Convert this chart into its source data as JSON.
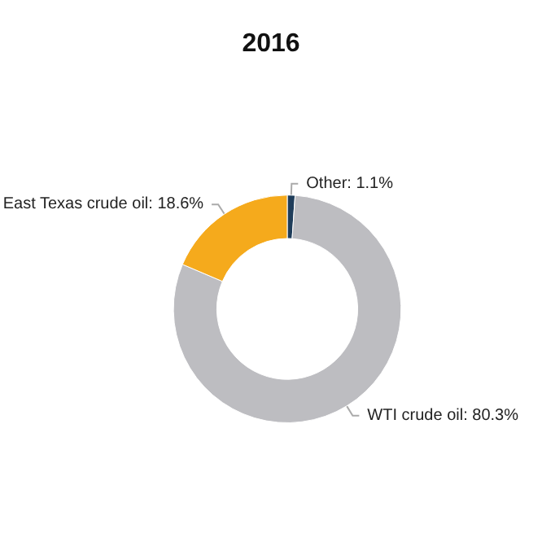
{
  "chart_data": {
    "type": "donut",
    "title": "2016",
    "categories": [
      "Other",
      "WTI crude oil",
      "East Texas crude oil"
    ],
    "values": [
      1.1,
      80.3,
      18.6
    ],
    "value_labels": [
      "1.1%",
      "80.3%",
      "18.6%"
    ],
    "colors": [
      "#1f3d5a",
      "#bdbdc1",
      "#f5aa1c"
    ],
    "legend": false
  }
}
